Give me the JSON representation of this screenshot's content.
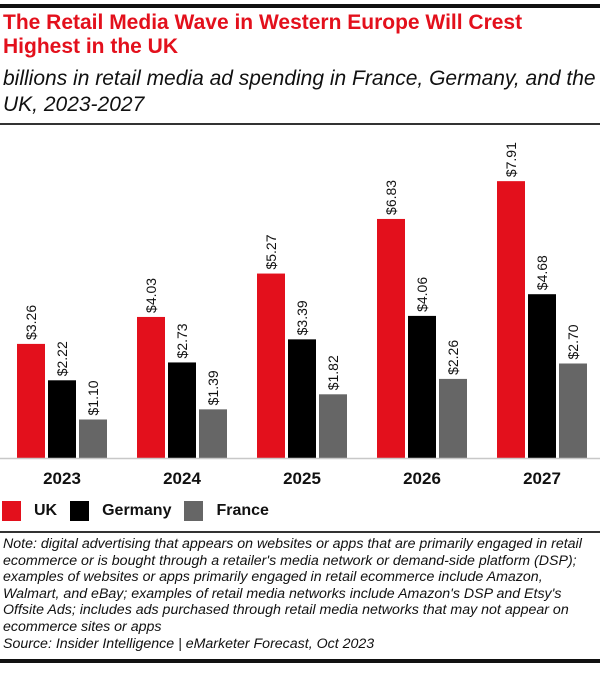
{
  "header": {
    "title": "The Retail Media Wave in Western Europe Will Crest Highest in the UK",
    "subtitle": "billions in retail media ad spending in France, Germany, and the UK, 2023-2027"
  },
  "legend": [
    {
      "label": "UK",
      "color": "#e3101c"
    },
    {
      "label": "Germany",
      "color": "#000000"
    },
    {
      "label": "France",
      "color": "#666666"
    }
  ],
  "footer": {
    "note": "Note: digital advertising that appears on websites or apps that are primarily engaged in retail ecommerce or is bought through a retailer's media network or demand-side platform (DSP); examples of websites or apps primarily engaged in retail ecommerce include Amazon, Walmart, and eBay; examples of retail media networks include Amazon's DSP and Etsy's Offsite Ads; includes ads purchased through retail media networks that may not appear on ecommerce sites or apps",
    "source": "Source: Insider Intelligence | eMarketer Forecast, Oct 2023"
  },
  "chart_data": {
    "type": "bar",
    "title": "The Retail Media Wave in Western Europe Will Crest Highest in the UK",
    "subtitle": "billions in retail media ad spending in France, Germany, and the UK, 2023-2027",
    "xlabel": "",
    "ylabel": "",
    "categories": [
      "2023",
      "2024",
      "2025",
      "2026",
      "2027"
    ],
    "series": [
      {
        "name": "UK",
        "color": "#e3101c",
        "values": [
          3.26,
          4.03,
          5.27,
          6.83,
          7.91
        ],
        "labels": [
          "$3.26",
          "$4.03",
          "$5.27",
          "$6.83",
          "$7.91"
        ]
      },
      {
        "name": "Germany",
        "color": "#000000",
        "values": [
          2.22,
          2.73,
          3.39,
          4.06,
          4.68
        ],
        "labels": [
          "$2.22",
          "$2.73",
          "$3.39",
          "$4.06",
          "$4.68"
        ]
      },
      {
        "name": "France",
        "color": "#666666",
        "values": [
          1.1,
          1.39,
          1.82,
          2.26,
          2.7
        ],
        "labels": [
          "$1.10",
          "$1.39",
          "$1.82",
          "$2.26",
          "$2.70"
        ]
      }
    ],
    "ylim": [
      0,
      8.5
    ],
    "grid": false,
    "legend_position": "bottom-left"
  }
}
